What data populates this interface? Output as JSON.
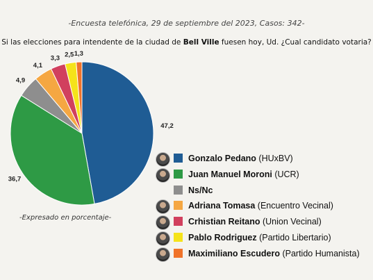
{
  "header": {
    "subtitle": "-Encuesta telefónica, 29 de septiembre del 2023, Casos: 342-",
    "question_pre": "Si las elecciones para intendente de la ciudad de ",
    "question_bold": "Bell Ville",
    "question_post": " fuesen hoy, Ud. ¿Cual candidato votaria?"
  },
  "note": "-Expresado en porcentaje-",
  "chart_data": {
    "type": "pie",
    "unit": "%",
    "slices": [
      {
        "name": "Gonzalo Pedano",
        "party": "(HUxBV)",
        "value": 47.2,
        "label": "47,2",
        "color": "#1f5c94",
        "avatar": true
      },
      {
        "name": "Juan Manuel Moroni",
        "party": "(UCR)",
        "value": 36.7,
        "label": "36,7",
        "color": "#2e9a45",
        "avatar": true
      },
      {
        "name": "Ns/Nc",
        "party": "",
        "value": 4.9,
        "label": "4,9",
        "color": "#8e8e8e",
        "avatar": false
      },
      {
        "name": "Adriana Tomasa",
        "party": "(Encuentro Vecinal)",
        "value": 4.1,
        "label": "4,1",
        "color": "#f5a742",
        "avatar": true
      },
      {
        "name": "Crhistian Reitano",
        "party": "(Union Vecinal)",
        "value": 3.3,
        "label": "3,3",
        "color": "#d1405e",
        "avatar": true
      },
      {
        "name": "Pablo Rodriguez",
        "party": "(Partido Libertario)",
        "value": 2.5,
        "label": "2,5",
        "color": "#f5e31a",
        "avatar": true
      },
      {
        "name": "Maximiliano Escudero",
        "party": "(Partido Humanista)",
        "value": 1.3,
        "label": "1,3",
        "color": "#f0732a",
        "avatar": true
      }
    ]
  }
}
